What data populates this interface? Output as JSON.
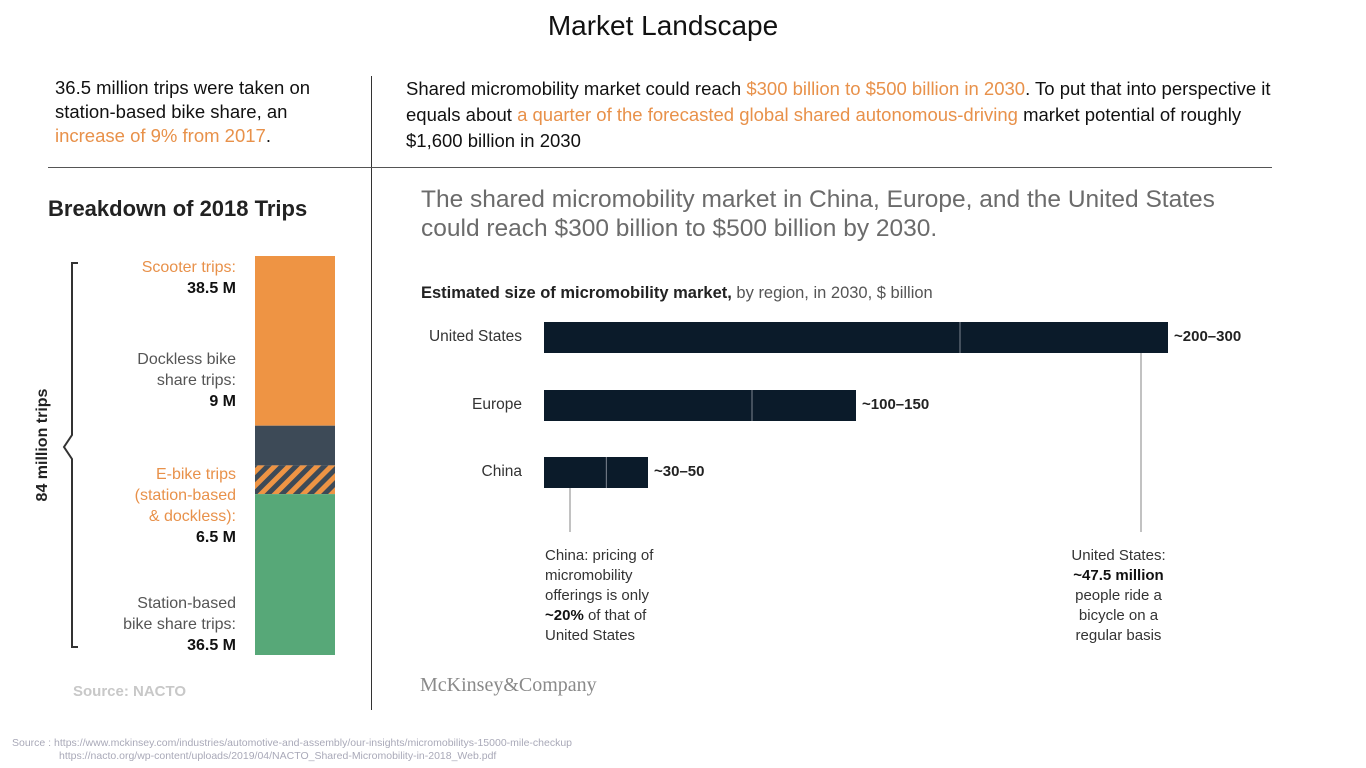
{
  "title": "Market Landscape",
  "intro_left": {
    "text_a": "36.5 million trips were taken on station-based bike share, an ",
    "highlight": "increase of 9% from 2017",
    "text_b": "."
  },
  "intro_right": {
    "text_a": "Shared micromobility market could reach ",
    "highlight_1": "$300 billion to $500 billion in 2030",
    "text_b": ". To put that into perspective it equals about ",
    "highlight_2": "a quarter of the forecasted global shared autonomous-driving",
    "text_c": " market potential of roughly $1,600 billion in 2030"
  },
  "breakdown": {
    "title": "Breakdown of 2018 Trips",
    "side_label": "84 million trips",
    "source": "Source: NACTO",
    "colors": {
      "scooter": "#ee9444",
      "dockless": "#3d4a57",
      "ebike_stripe": "#ee9444",
      "station": "#57a878"
    },
    "segments": [
      {
        "name": "Scooter trips:",
        "value_text": "38.5 M",
        "value": 38.5
      },
      {
        "name": "Dockless bike share trips:",
        "value_text": "9 M",
        "value": 9
      },
      {
        "name": "E-bike trips (station-based & dockless):",
        "value_text": "6.5 M",
        "value": 6.5
      },
      {
        "name": "Station-based bike share trips:",
        "value_text": "36.5 M",
        "value": 36.5
      }
    ],
    "labels": {
      "scooter_1": "Scooter trips:",
      "scooter_v": "38.5 M",
      "dockless_1": "Dockless bike",
      "dockless_2": "share trips:",
      "dockless_v": "9 M",
      "ebike_1": "E-bike trips",
      "ebike_2": "(station-based",
      "ebike_3": "& dockless):",
      "ebike_v": "6.5 M",
      "station_1": "Station-based",
      "station_2": "bike share trips:",
      "station_v": "36.5 M"
    }
  },
  "market": {
    "headline": "The shared micromobility market in China, Europe, and the United States could reach $300 billion to $500 billion by 2030.",
    "chart_title_bold": "Estimated size of micromobility market,",
    "chart_title_rest": " by region, in 2030, $ billion",
    "bar_color": "#0b1b2a",
    "notes": {
      "china_1": "China: pricing of",
      "china_2": "micromobility",
      "china_3": "offerings is only",
      "china_4b": "~20%",
      "china_4": " of that of",
      "china_5": "United States",
      "us_1": "United States:",
      "us_2b": "~47.5 million",
      "us_3": "people ride a",
      "us_4": "bicycle on a",
      "us_5": "regular basis"
    },
    "brand": "McKinsey&Company"
  },
  "chart_data": [
    {
      "type": "bar",
      "title": "Breakdown of 2018 Trips",
      "orientation": "stacked-vertical",
      "categories": [
        "Scooter trips",
        "Dockless bike share trips",
        "E-bike trips (station-based & dockless)",
        "Station-based bike share trips"
      ],
      "values": [
        38.5,
        9,
        6.5,
        36.5
      ],
      "unit": "M",
      "total_label": "84 million trips"
    },
    {
      "type": "bar",
      "title": "Estimated size of micromobility market, by region, in 2030, $ billion",
      "orientation": "horizontal-range",
      "categories": [
        "United States",
        "Europe",
        "China"
      ],
      "series": [
        {
          "name": "low",
          "values": [
            200,
            100,
            30
          ]
        },
        {
          "name": "high",
          "values": [
            300,
            150,
            50
          ]
        }
      ],
      "labels": [
        "~200–300",
        "~100–150",
        "~30–50"
      ],
      "xlim": [
        0,
        300
      ]
    }
  ],
  "source": {
    "prefix": "Source : ",
    "line1": "https://www.mckinsey.com/industries/automotive-and-assembly/our-insights/micromobilitys-15000-mile-checkup",
    "line2": "https://nacto.org/wp-content/uploads/2019/04/NACTO_Shared-Micromobility-in-2018_Web.pdf"
  }
}
